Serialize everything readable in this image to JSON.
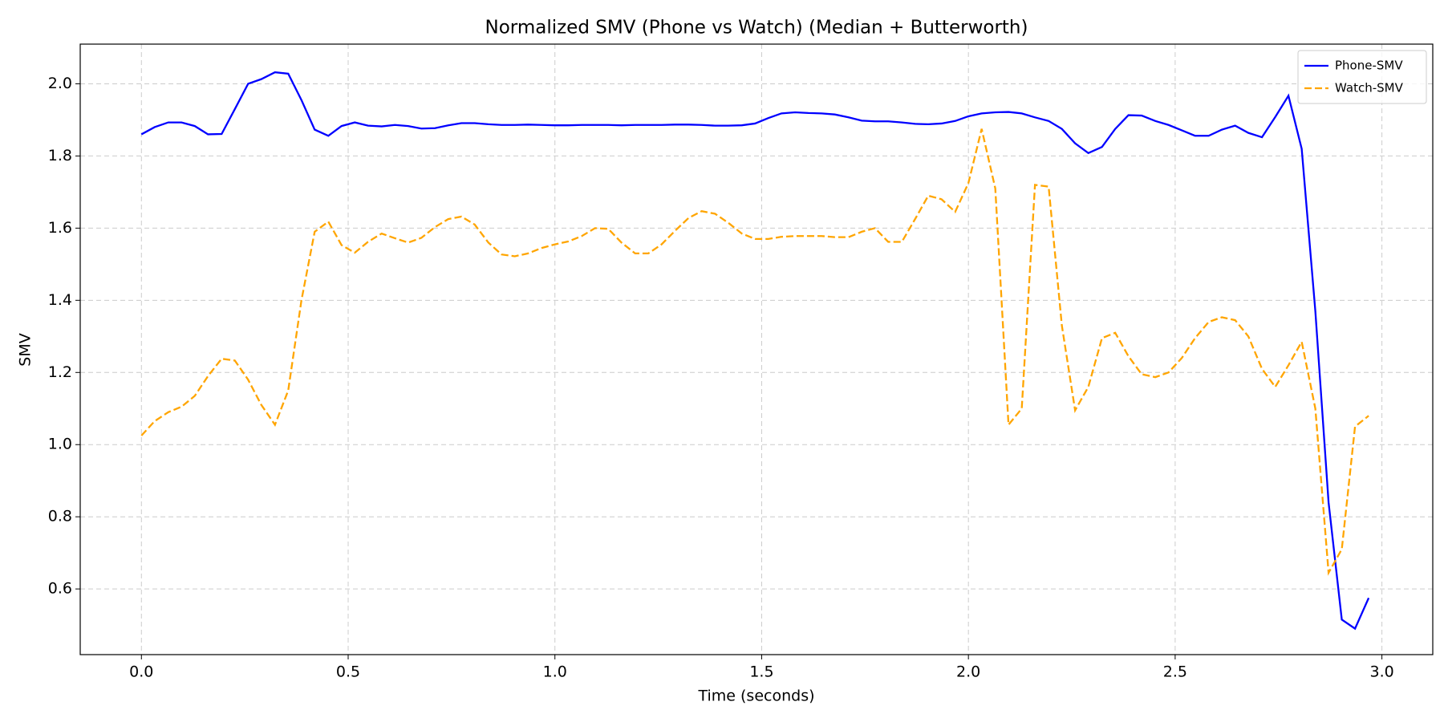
{
  "chart_data": {
    "type": "line",
    "title": "Normalized SMV (Phone vs Watch) (Median + Butterworth)",
    "x_label": "Time (seconds)",
    "y_label": "SMV",
    "x": [
      0,
      0.032,
      0.065,
      0.097,
      0.129,
      0.161,
      0.194,
      0.226,
      0.258,
      0.29,
      0.323,
      0.355,
      0.387,
      0.419,
      0.452,
      0.484,
      0.516,
      0.548,
      0.581,
      0.613,
      0.645,
      0.677,
      0.71,
      0.742,
      0.774,
      0.806,
      0.839,
      0.871,
      0.903,
      0.935,
      0.968,
      1.0,
      1.032,
      1.065,
      1.097,
      1.129,
      1.161,
      1.194,
      1.226,
      1.258,
      1.29,
      1.323,
      1.355,
      1.387,
      1.419,
      1.452,
      1.484,
      1.516,
      1.548,
      1.581,
      1.613,
      1.645,
      1.677,
      1.71,
      1.742,
      1.774,
      1.806,
      1.839,
      1.871,
      1.903,
      1.935,
      1.968,
      2.0,
      2.032,
      2.065,
      2.097,
      2.129,
      2.161,
      2.194,
      2.226,
      2.258,
      2.29,
      2.323,
      2.355,
      2.387,
      2.419,
      2.452,
      2.484,
      2.516,
      2.548,
      2.581,
      2.613,
      2.645,
      2.677,
      2.71,
      2.742,
      2.774,
      2.806,
      2.839,
      2.871,
      2.903,
      2.935,
      2.968
    ],
    "series": [
      {
        "name": "Phone-SMV",
        "color": "#0000ff",
        "dash": false,
        "values": [
          1.86,
          1.88,
          1.893,
          1.893,
          1.883,
          1.86,
          1.861,
          1.93,
          2.0,
          2.013,
          2.032,
          2.028,
          1.955,
          1.873,
          1.856,
          1.883,
          1.893,
          1.884,
          1.882,
          1.886,
          1.883,
          1.876,
          1.877,
          1.885,
          1.891,
          1.891,
          1.888,
          1.886,
          1.886,
          1.887,
          1.886,
          1.885,
          1.885,
          1.886,
          1.886,
          1.886,
          1.885,
          1.886,
          1.886,
          1.886,
          1.887,
          1.887,
          1.886,
          1.884,
          1.884,
          1.885,
          1.89,
          1.905,
          1.918,
          1.921,
          1.919,
          1.918,
          1.915,
          1.907,
          1.898,
          1.896,
          1.896,
          1.893,
          1.889,
          1.888,
          1.89,
          1.897,
          1.91,
          1.918,
          1.921,
          1.922,
          1.918,
          1.907,
          1.897,
          1.875,
          1.835,
          1.808,
          1.825,
          1.875,
          1.913,
          1.912,
          1.897,
          1.886,
          1.871,
          1.856,
          1.856,
          1.873,
          1.884,
          1.864,
          1.852,
          1.908,
          1.967,
          1.82,
          1.37,
          0.84,
          0.515,
          0.49,
          0.575
        ]
      },
      {
        "name": "Watch-SMV",
        "color": "#ffa500",
        "dash": true,
        "values": [
          1.025,
          1.065,
          1.09,
          1.105,
          1.135,
          1.19,
          1.238,
          1.233,
          1.18,
          1.11,
          1.055,
          1.15,
          1.4,
          1.59,
          1.618,
          1.553,
          1.532,
          1.562,
          1.585,
          1.572,
          1.56,
          1.573,
          1.603,
          1.625,
          1.632,
          1.61,
          1.56,
          1.527,
          1.522,
          1.53,
          1.545,
          1.555,
          1.563,
          1.578,
          1.6,
          1.598,
          1.56,
          1.53,
          1.53,
          1.555,
          1.592,
          1.628,
          1.647,
          1.64,
          1.615,
          1.585,
          1.57,
          1.57,
          1.576,
          1.578,
          1.578,
          1.578,
          1.575,
          1.575,
          1.59,
          1.6,
          1.562,
          1.562,
          1.625,
          1.69,
          1.68,
          1.645,
          1.725,
          1.875,
          1.71,
          1.055,
          1.1,
          1.72,
          1.715,
          1.33,
          1.095,
          1.16,
          1.295,
          1.31,
          1.245,
          1.195,
          1.187,
          1.2,
          1.24,
          1.295,
          1.34,
          1.353,
          1.345,
          1.3,
          1.21,
          1.16,
          1.22,
          1.285,
          1.1,
          0.645,
          0.71,
          1.05,
          1.08
        ]
      }
    ],
    "xlim": [
      -0.148,
      3.123
    ],
    "ylim": [
      0.418,
      2.11
    ],
    "xticks": [
      {
        "value": 0,
        "label": "0.0"
      },
      0.5,
      {
        "value": 1,
        "label": "1.0"
      },
      1.5,
      {
        "value": 2,
        "label": "2.0"
      },
      2.5,
      {
        "value": 3,
        "label": "3.0"
      }
    ],
    "yticks": [
      0.6,
      0.8,
      {
        "value": 1,
        "label": "1.0"
      },
      1.2,
      1.4,
      1.6,
      1.8,
      {
        "value": 2,
        "label": "2.0"
      }
    ],
    "grid": true,
    "legend": "upper-right"
  }
}
